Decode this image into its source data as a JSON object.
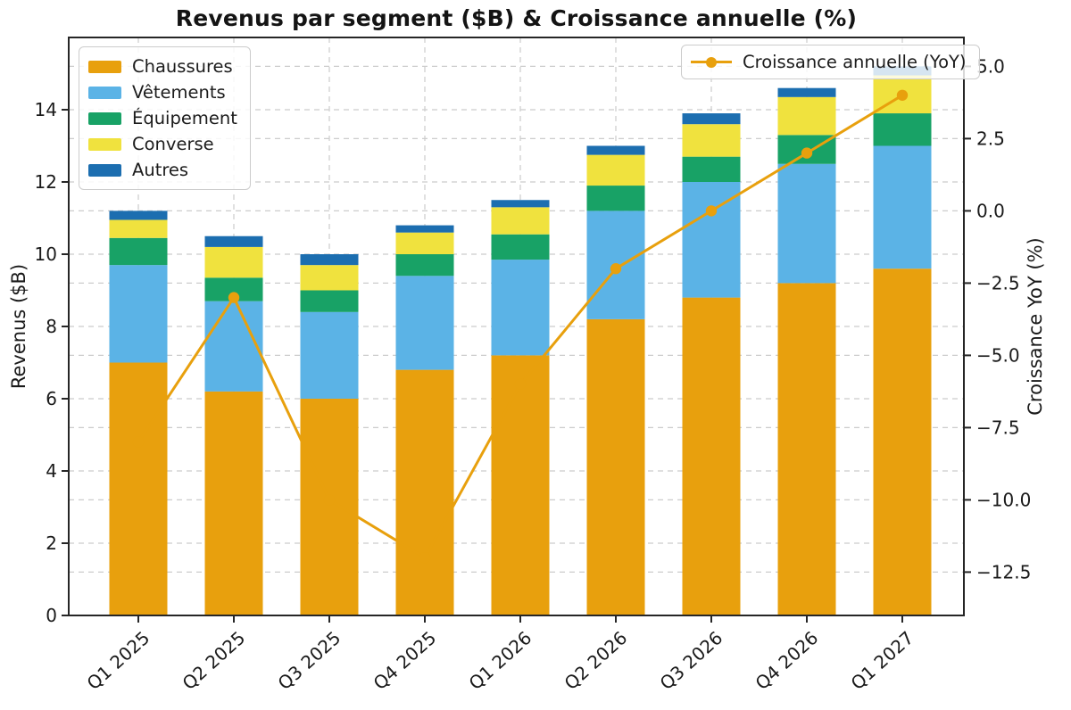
{
  "chart_data": {
    "type": "bar",
    "combo": "stacked-bar-with-line",
    "title": "Revenus par segment ($B) & Croissance annuelle (%)",
    "categories": [
      "Q1 2025",
      "Q2 2025",
      "Q3 2025",
      "Q4 2025",
      "Q1 2026",
      "Q2 2026",
      "Q3 2026",
      "Q4 2026",
      "Q1 2027"
    ],
    "series": [
      {
        "name": "Chaussures",
        "color": "#E8A00D",
        "values": [
          7.0,
          6.2,
          6.0,
          6.8,
          7.2,
          8.2,
          8.8,
          9.2,
          9.6
        ]
      },
      {
        "name": "Vêtements",
        "color": "#5BB3E6",
        "values": [
          2.7,
          2.5,
          2.4,
          2.6,
          2.65,
          3.0,
          3.2,
          3.3,
          3.4
        ]
      },
      {
        "name": "Équipement",
        "color": "#18A266",
        "values": [
          0.75,
          0.65,
          0.6,
          0.6,
          0.7,
          0.7,
          0.7,
          0.8,
          0.9
        ]
      },
      {
        "name": "Converse",
        "color": "#F0E23E",
        "values": [
          0.5,
          0.85,
          0.7,
          0.6,
          0.75,
          0.85,
          0.9,
          1.05,
          1.05
        ]
      },
      {
        "name": "Autres",
        "color": "#1C6EB0",
        "values": [
          0.25,
          0.3,
          0.3,
          0.2,
          0.2,
          0.25,
          0.3,
          0.25,
          0.25
        ]
      }
    ],
    "bar_totals": [
      11.2,
      10.5,
      10.0,
      10.8,
      11.5,
      13.0,
      13.9,
      14.6,
      15.2
    ],
    "line_series": {
      "name": "Croissance annuelle (YoY)",
      "color": "#E8A00D",
      "marker": "circle",
      "values": [
        -8.0,
        -3.0,
        -10.0,
        -12.0,
        -6.0,
        -2.0,
        0.0,
        2.0,
        4.0
      ]
    },
    "ylabel_left": "Revenus ($B)",
    "ylabel_right": "Croissance YoY (%)",
    "ylim_left": [
      0,
      16
    ],
    "ylim_right": [
      -14,
      6
    ],
    "yticks_left": [
      0,
      2,
      4,
      6,
      8,
      10,
      12,
      14
    ],
    "yticks_left_labels": [
      "0",
      "2",
      "4",
      "6",
      "8",
      "10",
      "12",
      "14"
    ],
    "yticks_right": [
      5.0,
      2.5,
      0.0,
      -2.5,
      -5.0,
      -7.5,
      -10.0,
      -12.5
    ],
    "yticks_right_labels": [
      "5.0",
      "2.5",
      "0.0",
      "−2.5",
      "−5.0",
      "−7.5",
      "−10.0",
      "−12.5"
    ],
    "grid": "dashed",
    "legend_left_position": "upper left",
    "legend_right_position": "upper right",
    "colors": {
      "grid": "#cccccc",
      "spine": "#262626",
      "text": "#1a1a1a",
      "legend_border": "#cccccc"
    }
  }
}
